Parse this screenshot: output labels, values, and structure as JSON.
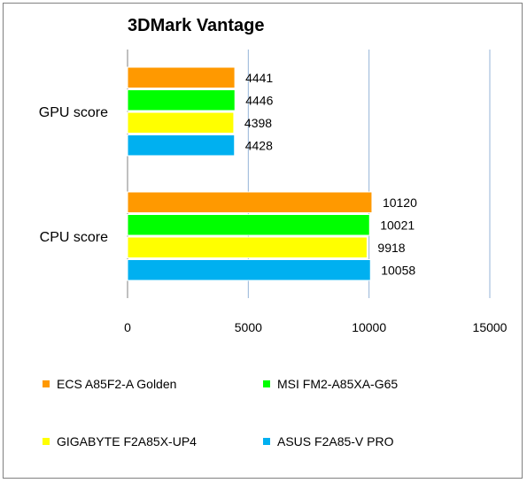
{
  "chart_data": {
    "type": "bar",
    "orientation": "horizontal",
    "title": "3DMark Vantage",
    "categories": [
      "GPU score",
      "CPU score"
    ],
    "series": [
      {
        "name": "ECS A85F2-A Golden",
        "color": "#ff9900",
        "values": [
          4441,
          10120
        ]
      },
      {
        "name": "MSI FM2-A85XA-G65",
        "color": "#00ff00",
        "values": [
          4446,
          10021
        ]
      },
      {
        "name": "GIGABYTE F2A85X-UP4",
        "color": "#ffff00",
        "values": [
          4398,
          9918
        ]
      },
      {
        "name": "ASUS F2A85-V PRO",
        "color": "#00b0f0",
        "values": [
          4428,
          10058
        ]
      }
    ],
    "xlim": [
      0,
      15000
    ],
    "ticks": [
      "0",
      "5000",
      "10000",
      "15000"
    ],
    "tick_values": [
      0,
      5000,
      10000,
      15000
    ],
    "grid": true,
    "legend_position": "bottom",
    "xlabel": "",
    "ylabel": ""
  }
}
